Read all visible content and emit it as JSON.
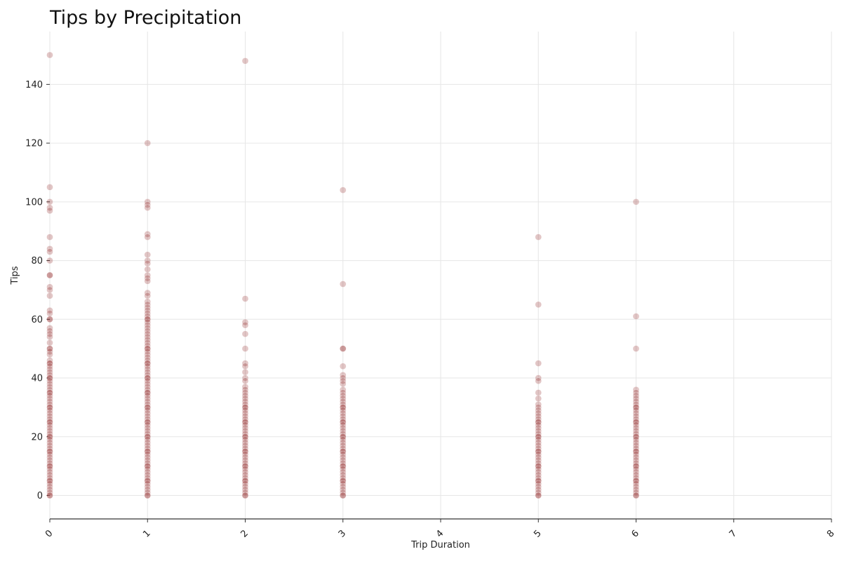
{
  "chart_data": {
    "type": "scatter",
    "title": "Tips by Precipitation",
    "xlabel": "Trip Duration",
    "ylabel": "Tips",
    "xlim": [
      0,
      8
    ],
    "ylim": [
      -8,
      158
    ],
    "x_ticks": [
      0,
      1,
      2,
      3,
      4,
      5,
      6,
      7,
      8
    ],
    "y_ticks": [
      0,
      20,
      40,
      60,
      80,
      100,
      120,
      140
    ],
    "grid": true,
    "marker_color": "#8b1a1a",
    "marker_alpha": 0.25,
    "points": [
      {
        "x": 0,
        "values": [
          150,
          105,
          100,
          98,
          97,
          88,
          84,
          83,
          80,
          75,
          75,
          71,
          70,
          68,
          63,
          62,
          60,
          60,
          57,
          56,
          55,
          54,
          52,
          50,
          50,
          49,
          48,
          46,
          45,
          45,
          44,
          43,
          42,
          41,
          40,
          40,
          39,
          38,
          37,
          36,
          35,
          35,
          34,
          33,
          32,
          31,
          30,
          30,
          29,
          28,
          27,
          26,
          25,
          25,
          24,
          23,
          22,
          21,
          20,
          20,
          19,
          18,
          17,
          16,
          15,
          15,
          14,
          13,
          12,
          11,
          10,
          10,
          9,
          8,
          7,
          6,
          5,
          5,
          4,
          3,
          2,
          1,
          0,
          0
        ]
      },
      {
        "x": 1,
        "values": [
          120,
          100,
          99,
          98,
          89,
          88,
          82,
          80,
          79,
          77,
          75,
          74,
          73,
          69,
          68,
          66,
          65,
          64,
          63,
          62,
          61,
          60,
          60,
          59,
          58,
          57,
          56,
          55,
          54,
          53,
          52,
          51,
          50,
          50,
          49,
          48,
          47,
          46,
          45,
          45,
          44,
          43,
          42,
          41,
          40,
          40,
          39,
          38,
          37,
          36,
          35,
          35,
          34,
          33,
          32,
          31,
          30,
          30,
          29,
          28,
          27,
          26,
          25,
          25,
          24,
          23,
          22,
          21,
          20,
          20,
          19,
          18,
          17,
          16,
          15,
          15,
          14,
          13,
          12,
          11,
          10,
          10,
          9,
          8,
          7,
          6,
          5,
          5,
          4,
          3,
          2,
          1,
          0,
          0
        ]
      },
      {
        "x": 2,
        "values": [
          148,
          67,
          59,
          58,
          55,
          50,
          45,
          44,
          42,
          40,
          39,
          37,
          36,
          35,
          34,
          33,
          32,
          31,
          30,
          30,
          29,
          28,
          27,
          26,
          25,
          25,
          24,
          23,
          22,
          21,
          20,
          20,
          19,
          18,
          17,
          16,
          15,
          15,
          14,
          13,
          12,
          11,
          10,
          10,
          9,
          8,
          7,
          6,
          5,
          5,
          4,
          3,
          2,
          1,
          0,
          0
        ]
      },
      {
        "x": 3,
        "values": [
          104,
          72,
          50,
          50,
          44,
          41,
          40,
          39,
          38,
          36,
          35,
          34,
          33,
          32,
          31,
          30,
          30,
          29,
          28,
          27,
          26,
          25,
          25,
          24,
          23,
          22,
          21,
          20,
          20,
          19,
          18,
          17,
          16,
          15,
          15,
          14,
          13,
          12,
          11,
          10,
          10,
          9,
          8,
          7,
          6,
          5,
          5,
          4,
          3,
          2,
          1,
          0,
          0
        ]
      },
      {
        "x": 5,
        "values": [
          88,
          65,
          45,
          40,
          39,
          35,
          33,
          31,
          30,
          29,
          28,
          27,
          26,
          25,
          25,
          24,
          23,
          22,
          21,
          20,
          20,
          19,
          18,
          17,
          16,
          15,
          15,
          14,
          13,
          12,
          11,
          10,
          10,
          9,
          8,
          7,
          6,
          5,
          5,
          4,
          3,
          2,
          1,
          0,
          0
        ]
      },
      {
        "x": 6,
        "values": [
          100,
          61,
          50,
          36,
          35,
          34,
          33,
          32,
          31,
          30,
          30,
          29,
          28,
          27,
          26,
          25,
          25,
          24,
          23,
          22,
          21,
          20,
          20,
          19,
          18,
          17,
          16,
          15,
          15,
          14,
          13,
          12,
          11,
          10,
          10,
          9,
          8,
          7,
          6,
          5,
          5,
          4,
          3,
          2,
          1,
          0,
          0
        ]
      }
    ]
  }
}
